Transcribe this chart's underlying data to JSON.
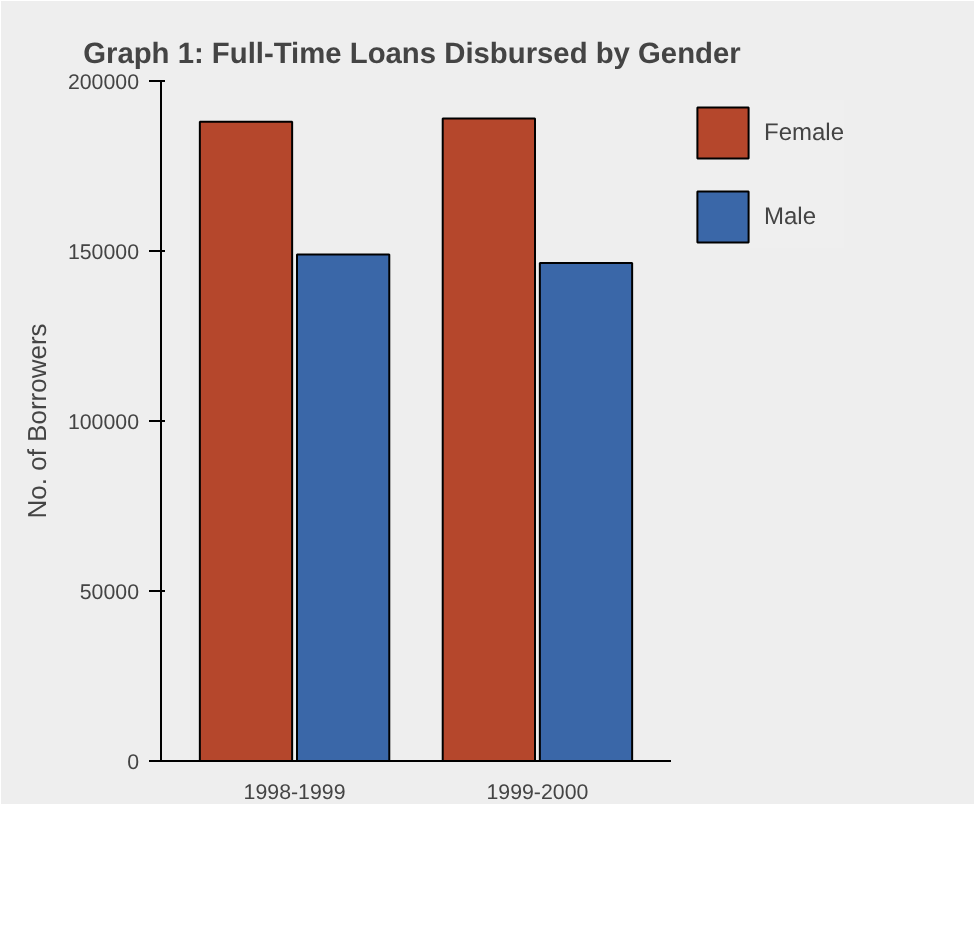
{
  "chart_data": {
    "type": "bar",
    "title": "Graph 1:  Full-Time Loans Disbursed by Gender",
    "ylabel": "No. of Borrowers",
    "categories": [
      "1998-1999",
      "1999-2000"
    ],
    "series": [
      {
        "name": "Female",
        "color": "#b5472c",
        "values": [
          188000,
          189000
        ]
      },
      {
        "name": "Male",
        "color": "#3a67a8",
        "values": [
          149000,
          146500
        ]
      }
    ],
    "ylim": [
      0,
      200000
    ],
    "yticks": [
      0,
      50000,
      100000,
      150000,
      200000
    ],
    "legend": "top right"
  }
}
